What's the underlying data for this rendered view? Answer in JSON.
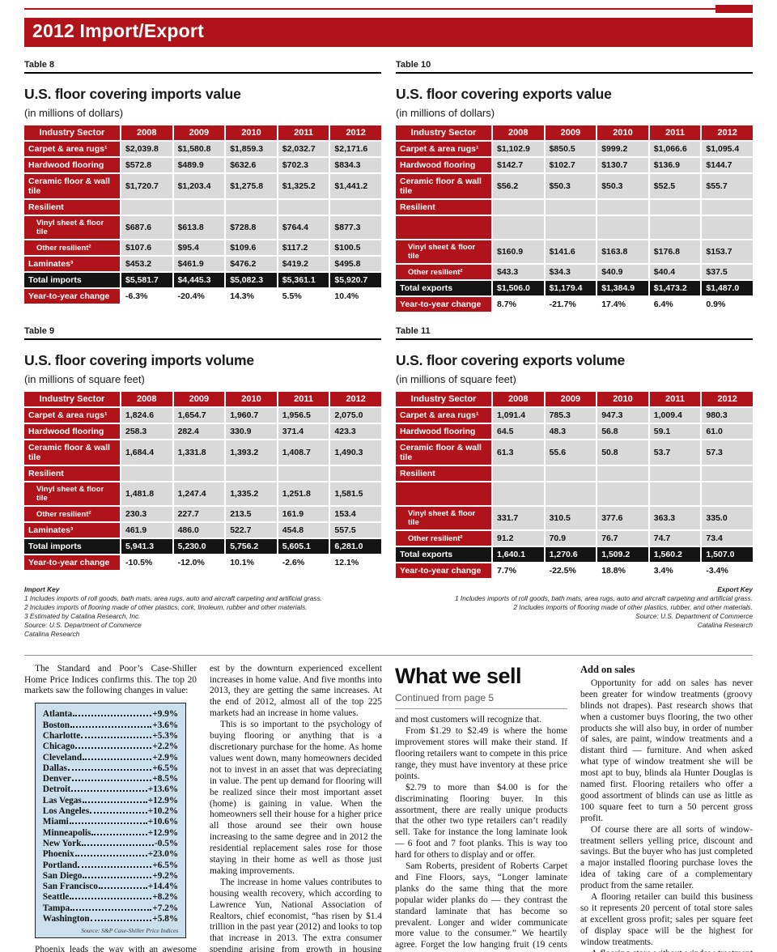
{
  "page": {
    "banner_title": "2012 Import/Export",
    "fcw_label": "FCW",
    "accent_color": "#b01319"
  },
  "tables": [
    {
      "label": "Table 8",
      "title": "U.S. floor covering imports value",
      "subtitle": "(in millions of dollars)",
      "columns": [
        "Industry Sector",
        "2008",
        "2009",
        "2010",
        "2011",
        "2012"
      ],
      "rows": [
        {
          "type": "data",
          "label": "Carpet & area rugs¹",
          "values": [
            "$2,039.8",
            "$1,580.8",
            "$1,859.3",
            "$2,032.7",
            "$2,171.6"
          ]
        },
        {
          "type": "data",
          "label": "Hardwood flooring",
          "values": [
            "$572.8",
            "$489.9",
            "$632.6",
            "$702.3",
            "$834.3"
          ]
        },
        {
          "type": "data",
          "label": "Ceramic floor & wall tile",
          "values": [
            "$1,720.7",
            "$1,203.4",
            "$1,275.8",
            "$1,325.2",
            "$1,441.2"
          ]
        },
        {
          "type": "section",
          "label": "Resilient",
          "values": [
            "",
            "",
            "",
            "",
            ""
          ]
        },
        {
          "type": "sub",
          "label": "Vinyl sheet & floor tile",
          "values": [
            "$687.6",
            "$613.8",
            "$728.8",
            "$764.4",
            "$877.3"
          ]
        },
        {
          "type": "sub",
          "label": "Other resilient²",
          "values": [
            "$107.6",
            "$95.4",
            "$109.6",
            "$117.2",
            "$100.5"
          ]
        },
        {
          "type": "data",
          "label": "Laminates³",
          "values": [
            "$453.2",
            "$461.9",
            "$476.2",
            "$419.2",
            "$495.8"
          ]
        },
        {
          "type": "total",
          "label": "Total imports",
          "values": [
            "$5,581.7",
            "$4,445.3",
            "$5,082.3",
            "$5,361.1",
            "$5,920.7"
          ]
        },
        {
          "type": "change",
          "label": "Year-to-year change",
          "values": [
            "-6.3%",
            "-20.4%",
            "14.3%",
            "5.5%",
            "10.4%"
          ]
        }
      ]
    },
    {
      "label": "Table 10",
      "title": "U.S. floor covering exports value",
      "subtitle": "(in millions of dollars)",
      "columns": [
        "Industry Sector",
        "2008",
        "2009",
        "2010",
        "2011",
        "2012"
      ],
      "rows": [
        {
          "type": "data",
          "label": "Carpet & area rugs¹",
          "values": [
            "$1,102.9",
            "$850.5",
            "$999.2",
            "$1,066.6",
            "$1,095.4"
          ]
        },
        {
          "type": "data",
          "label": "Hardwood flooring",
          "values": [
            "$142.7",
            "$102.7",
            "$130.7",
            "$136.9",
            "$144.7"
          ]
        },
        {
          "type": "data",
          "label": "Ceramic floor & wall tile",
          "values": [
            "$56.2",
            "$50.3",
            "$50.3",
            "$52.5",
            "$55.7"
          ]
        },
        {
          "type": "section",
          "label": "Resilient",
          "values": [
            "",
            "",
            "",
            "",
            ""
          ]
        },
        {
          "type": "spacer",
          "label": "",
          "values": [
            "",
            "",
            "",
            "",
            ""
          ]
        },
        {
          "type": "sub",
          "label": "Vinyl sheet & floor tile",
          "values": [
            "$160.9",
            "$141.6",
            "$163.8",
            "$176.8",
            "$153.7"
          ]
        },
        {
          "type": "sub",
          "label": "Other resilient²",
          "values": [
            "$43.3",
            "$34.3",
            "$40.9",
            "$40.4",
            "$37.5"
          ]
        },
        {
          "type": "total",
          "label": "Total exports",
          "values": [
            "$1,506.0",
            "$1,179.4",
            "$1,384.9",
            "$1,473.2",
            "$1,487.0"
          ]
        },
        {
          "type": "change",
          "label": "Year-to-year change",
          "values": [
            "8.7%",
            "-21.7%",
            "17.4%",
            "6.4%",
            "0.9%"
          ]
        }
      ]
    },
    {
      "label": "Table 9",
      "title": "U.S. floor covering imports volume",
      "subtitle": "(in millions of square feet)",
      "columns": [
        "Industry Sector",
        "2008",
        "2009",
        "2010",
        "2011",
        "2012"
      ],
      "rows": [
        {
          "type": "data",
          "label": "Carpet & area rugs¹",
          "values": [
            "1,824.6",
            "1,654.7",
            "1,960.7",
            "1,956.5",
            "2,075.0"
          ]
        },
        {
          "type": "data",
          "label": "Hardwood flooring",
          "values": [
            "258.3",
            "282.4",
            "330.9",
            "371.4",
            "423.3"
          ]
        },
        {
          "type": "data",
          "label": "Ceramic floor & wall tile",
          "values": [
            "1,684.4",
            "1,331.8",
            "1,393.2",
            "1,408.7",
            "1,490.3"
          ]
        },
        {
          "type": "section",
          "label": "Resilient",
          "values": [
            "",
            "",
            "",
            "",
            ""
          ]
        },
        {
          "type": "sub",
          "label": "Vinyl sheet & floor tile",
          "values": [
            "1,481.8",
            "1,247.4",
            "1,335.2",
            "1,251.8",
            "1,581.5"
          ]
        },
        {
          "type": "sub",
          "label": "Other resilient²",
          "values": [
            "230.3",
            "227.7",
            "213.5",
            "161.9",
            "153.4"
          ]
        },
        {
          "type": "data",
          "label": "Laminates³",
          "values": [
            "461.9",
            "486.0",
            "522.7",
            "454.8",
            "557.5"
          ]
        },
        {
          "type": "total",
          "label": "Total imports",
          "values": [
            "5,941.3",
            "5,230.0",
            "5,756.2",
            "5,605.1",
            "6,281.0"
          ]
        },
        {
          "type": "change",
          "label": "Year-to-year change",
          "values": [
            "-10.5%",
            "-12.0%",
            "10.1%",
            "-2.6%",
            "12.1%"
          ]
        }
      ]
    },
    {
      "label": "Table 11",
      "title": "U.S. floor covering exports volume",
      "subtitle": "(in millions of square feet)",
      "columns": [
        "Industry Sector",
        "2008",
        "2009",
        "2010",
        "2011",
        "2012"
      ],
      "rows": [
        {
          "type": "data",
          "label": "Carpet & area rugs¹",
          "values": [
            "1,091.4",
            "785.3",
            "947.3",
            "1,009.4",
            "980.3"
          ]
        },
        {
          "type": "data",
          "label": "Hardwood flooring",
          "values": [
            "64.5",
            "48.3",
            "56.8",
            "59.1",
            "61.0"
          ]
        },
        {
          "type": "data",
          "label": "Ceramic floor & wall tile",
          "values": [
            "61.3",
            "55.6",
            "50.8",
            "53.7",
            "57.3"
          ]
        },
        {
          "type": "section",
          "label": "Resilient",
          "values": [
            "",
            "",
            "",
            "",
            ""
          ]
        },
        {
          "type": "spacer",
          "label": "",
          "values": [
            "",
            "",
            "",
            "",
            ""
          ]
        },
        {
          "type": "sub",
          "label": "Vinyl sheet & floor tile",
          "values": [
            "331.7",
            "310.5",
            "377.6",
            "363.3",
            "335.0"
          ]
        },
        {
          "type": "sub",
          "label": "Other resilient²",
          "values": [
            "91.2",
            "70.9",
            "76.7",
            "74.7",
            "73.4"
          ]
        },
        {
          "type": "total",
          "label": "Total exports",
          "values": [
            "1,640.1",
            "1,270.6",
            "1,509.2",
            "1,560.2",
            "1,507.0"
          ]
        },
        {
          "type": "change",
          "label": "Year-to-year change",
          "values": [
            "7.7%",
            "-22.5%",
            "18.8%",
            "3.4%",
            "-3.4%"
          ]
        }
      ]
    }
  ],
  "keys": {
    "import": {
      "title": "Import Key",
      "lines": [
        "1  Includes imports of roll goods, bath mats, area rugs, auto and aircraft carpeting and artificial grass.",
        "2  Includes imports of flooring made of other plastics, cork, linoleum, rubber and other materials.",
        "3  Estimated by Catalina Research, Inc.",
        "Source: U.S. Department of Commerce",
        "Catalina Research"
      ]
    },
    "export": {
      "title": "Export Key",
      "lines": [
        "1  Includes imports of roll goods, bath mats, area rugs, auto and aircraft carpeting and artificial grass.",
        "2  Includes imports of flooring made of other plastics, rubber, and other materials.",
        "Source: U.S. Department of Commerce",
        "Catalina Research"
      ]
    }
  },
  "article": {
    "col1": {
      "intro": "The Standard and Poor’s Case-Shiller Home Price Indices confirms this. The top 20 markets saw the following changes in value:",
      "city_list": {
        "items": [
          {
            "city": "Atlanta",
            "change": "+9.9%"
          },
          {
            "city": "Boston",
            "change": "+3.6%"
          },
          {
            "city": "Charlotte",
            "change": "+5.3%"
          },
          {
            "city": "Chicago",
            "change": "+2.2%"
          },
          {
            "city": "Cleveland",
            "change": "+2.9%"
          },
          {
            "city": "Dallas",
            "change": "+6.5%"
          },
          {
            "city": "Denver",
            "change": "+8.5%"
          },
          {
            "city": "Detroit",
            "change": "+13.6%"
          },
          {
            "city": "Las Vegas",
            "change": "+12.9%"
          },
          {
            "city": "Los Angeles",
            "change": "+10.2%"
          },
          {
            "city": "Miami",
            "change": "+10.6%"
          },
          {
            "city": "Minneapolis",
            "change": "+12.9%"
          },
          {
            "city": "New York",
            "change": "-0.5%"
          },
          {
            "city": "Phoenix",
            "change": "+23.0%"
          },
          {
            "city": "Portland",
            "change": "+6.5%"
          },
          {
            "city": "San Diego",
            "change": "+9.2%"
          },
          {
            "city": "San Francisco",
            "change": "+14.4%"
          },
          {
            "city": "Seattle",
            "change": "+8.2%"
          },
          {
            "city": "Tampa",
            "change": "+7.2%"
          },
          {
            "city": "Washington",
            "change": "+5.8%"
          }
        ],
        "source": "Source: S&P Case-Shiller Price Indices"
      },
      "outro": "Phoenix leads the way with an awesome +23.0 percent. The cities and states hit hard-"
    },
    "col2": {
      "paragraphs": [
        "est by the downturn experienced excellent increases in home value. And five months into 2013, they are getting the same increases. At the end of 2012, almost all of the top 225 markets had an increase in home values.",
        "This is so important to the psychology of buying flooring or anything that is a discretionary purchase for the home. As home values went down, many homeowners decided not to invest in an asset that was depreciating in value. The pent up demand for flooring will be realized since their most important asset (home) is gaining in value. When the homeowners sell their house for a higher price all those around see their own house increasing to the same degree and in 2012 the residential replacement sales rose for those staying in their home as well as those just making improvements.",
        "The increase in home values contributes to housing wealth recovery, which according to Lawrence Yun, National Association of Realtors, chief economist, “has risen by $1.4 trillion in the past year (2012) and looks to top that increase in 2013. The extra consumer spending arising from growth in housing wealth is expected to be $70 billion to $110 billion this year.”"
      ]
    },
    "col3": {
      "heading": "What we sell",
      "subheading": "Continued from page 5",
      "paragraphs": [
        "and most customers will recognize that.",
        "From $1.29 to $2.49 is where the home improvement stores will make their stand. If flooring retailers want to compete in this price range, they must have inventory at these price points.",
        "$2.79 to more than $4.00 is for the discriminating flooring buyer. In this assortment, there are really unique products that the other two type retailers can’t readily sell. Take for instance the long laminate look — 6 foot and 7 foot planks. This is way too hard for others to display and or offer.",
        "Sam Roberts, president of Roberts Carpet and Fine Floors, says, “Longer laminate planks do the same thing that the more popular wider planks do — they contrast the standard laminate that has become so prevalent. Longer and wider communicate more value to the consumer.” We heartily agree. Forget the low hanging fruit (19 cents per square foot) — the future is clear for a profitable laminate sale for floor covering specialty stores."
      ]
    },
    "col4": {
      "heading": "Add on sales",
      "paragraphs": [
        "Opportunity for add on sales has never been greater for window treatments (groovy blinds not drapes). Past research shows that when a customer buys flooring, the two other products she will also buy, in order of number of sales, are paint, window treatments and a distant third — furniture. And when asked what type of window treatment she will be most apt to buy, blinds ala Hunter Douglas is named first. Flooring retailers who offer a good assortment of blinds can use as little as 100 square feet to turn a 50 percent gross profit.",
        "Of course there are all sorts of window-treatment sellers yelling price, discount and savings. But the buyer who has just completed a major installed flooring purchase loves the idea of taking care of a complementary product from the same retailer.",
        "A flooring retailer can build this business so it represents 20 percent of total store sales at excellent gross profit; sales per square feet of display space will be the highest for window treatments.",
        "A flooring store without window treatment is one that is not really fulfilling customer needs as she describes them."
      ]
    }
  }
}
